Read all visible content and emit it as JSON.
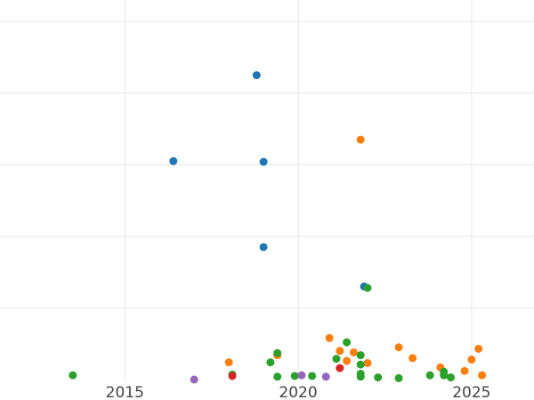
{
  "chart_data": {
    "type": "scatter",
    "title": "",
    "xlabel": "",
    "ylabel": "",
    "xlim": [
      2011.4,
      2026.8
    ],
    "ylim": [
      0,
      5.3
    ],
    "x_ticks": [
      2015,
      2020,
      2025
    ],
    "x_tick_labels": [
      "2015",
      "2020",
      "2025"
    ],
    "y_gridlines": [
      1,
      2,
      3,
      4,
      5
    ],
    "grid": true,
    "legend": "none",
    "series": [
      {
        "color": "#1f77b4",
        "points": [
          [
            2016.4,
            3.05
          ],
          [
            2018.8,
            4.25
          ],
          [
            2019.0,
            3.04
          ],
          [
            2019.0,
            1.85
          ],
          [
            2021.9,
            1.3
          ]
        ]
      },
      {
        "color": "#ff7f0e",
        "points": [
          [
            2018.0,
            0.24
          ],
          [
            2019.4,
            0.34
          ],
          [
            2020.9,
            0.58
          ],
          [
            2021.2,
            0.4
          ],
          [
            2021.4,
            0.26
          ],
          [
            2021.6,
            0.38
          ],
          [
            2021.8,
            3.35
          ],
          [
            2022.0,
            0.23
          ],
          [
            2022.9,
            0.45
          ],
          [
            2023.3,
            0.3
          ],
          [
            2024.1,
            0.17
          ],
          [
            2024.8,
            0.12
          ],
          [
            2025.0,
            0.28
          ],
          [
            2025.2,
            0.43
          ],
          [
            2025.3,
            0.06
          ]
        ]
      },
      {
        "color": "#2ca02c",
        "points": [
          [
            2013.5,
            0.06
          ],
          [
            2018.1,
            0.07
          ],
          [
            2019.2,
            0.24
          ],
          [
            2019.4,
            0.37
          ],
          [
            2019.4,
            0.04
          ],
          [
            2019.9,
            0.05
          ],
          [
            2020.4,
            0.05
          ],
          [
            2021.1,
            0.29
          ],
          [
            2021.4,
            0.52
          ],
          [
            2021.8,
            0.34
          ],
          [
            2021.8,
            0.21
          ],
          [
            2021.8,
            0.08
          ],
          [
            2021.8,
            0.04
          ],
          [
            2022.0,
            1.28
          ],
          [
            2022.3,
            0.03
          ],
          [
            2022.9,
            0.02
          ],
          [
            2023.8,
            0.06
          ],
          [
            2024.2,
            0.11
          ],
          [
            2024.2,
            0.06
          ],
          [
            2024.4,
            0.03
          ]
        ]
      },
      {
        "color": "#d62728",
        "points": [
          [
            2018.1,
            0.05
          ],
          [
            2021.2,
            0.16
          ]
        ]
      },
      {
        "color": "#9467bd",
        "points": [
          [
            2017.0,
            0.0
          ],
          [
            2020.1,
            0.06
          ],
          [
            2020.8,
            0.04
          ]
        ]
      }
    ]
  }
}
